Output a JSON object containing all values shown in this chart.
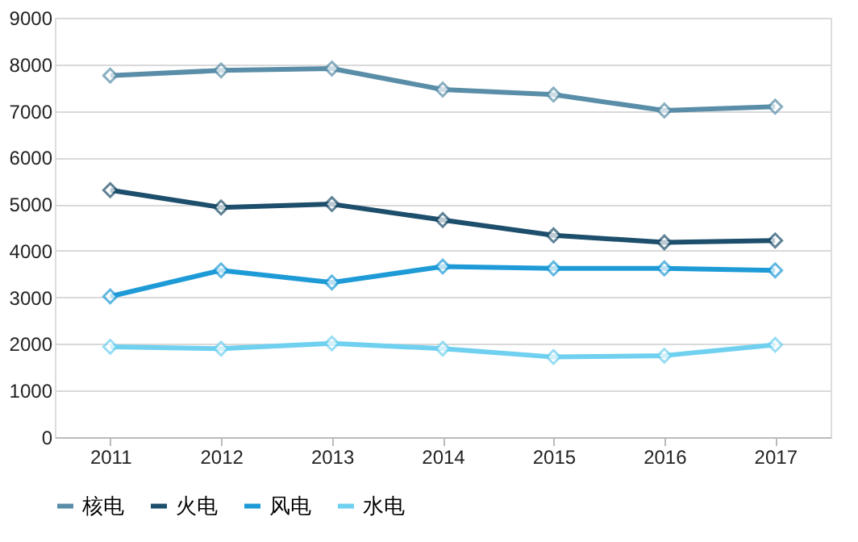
{
  "chart_data": {
    "type": "line",
    "categories": [
      "2011",
      "2012",
      "2013",
      "2014",
      "2015",
      "2016",
      "2017"
    ],
    "series": [
      {
        "name": "核电",
        "color": "#5a8ea8",
        "values": [
          7760,
          7870,
          7910,
          7460,
          7350,
          7010,
          7090
        ]
      },
      {
        "name": "火电",
        "color": "#1d4e6b",
        "values": [
          5300,
          4930,
          5000,
          4660,
          4330,
          4180,
          4220
        ]
      },
      {
        "name": "风电",
        "color": "#1e9bd7",
        "values": [
          3020,
          3580,
          3320,
          3660,
          3620,
          3620,
          3580
        ]
      },
      {
        "name": "水电",
        "color": "#6fd0f0",
        "values": [
          1940,
          1900,
          2010,
          1900,
          1720,
          1750,
          1980
        ]
      }
    ],
    "ylim": [
      0,
      9000
    ],
    "yticks": [
      0,
      1000,
      2000,
      3000,
      4000,
      5000,
      6000,
      7000,
      8000,
      9000
    ],
    "grid": "y",
    "legend": "bottom",
    "marker": "diamond",
    "line_style": "solid"
  }
}
